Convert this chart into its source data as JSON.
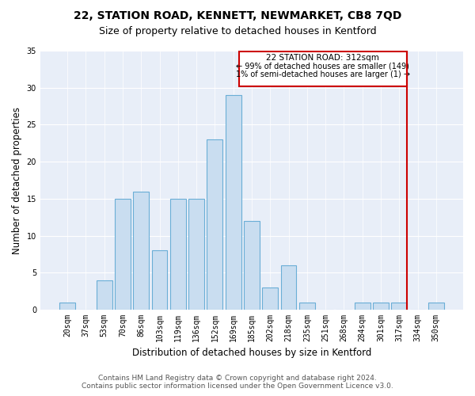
{
  "title1": "22, STATION ROAD, KENNETT, NEWMARKET, CB8 7QD",
  "title2": "Size of property relative to detached houses in Kentford",
  "xlabel": "Distribution of detached houses by size in Kentford",
  "ylabel": "Number of detached properties",
  "bar_labels": [
    "20sqm",
    "37sqm",
    "53sqm",
    "70sqm",
    "86sqm",
    "103sqm",
    "119sqm",
    "136sqm",
    "152sqm",
    "169sqm",
    "185sqm",
    "202sqm",
    "218sqm",
    "235sqm",
    "251sqm",
    "268sqm",
    "284sqm",
    "301sqm",
    "317sqm",
    "334sqm",
    "350sqm"
  ],
  "bar_values": [
    1,
    0,
    4,
    15,
    16,
    8,
    15,
    15,
    23,
    29,
    12,
    3,
    6,
    1,
    0,
    0,
    1,
    1,
    1,
    0,
    1
  ],
  "bar_color": "#c9ddf0",
  "bar_edge_color": "#6aaed6",
  "red_line_index": 18,
  "annotation_title": "22 STATION ROAD: 312sqm",
  "annotation_line1": "← 99% of detached houses are smaller (149)",
  "annotation_line2": "1% of semi-detached houses are larger (1) →",
  "red_color": "#cc0000",
  "ylim_max": 35,
  "yticks": [
    0,
    5,
    10,
    15,
    20,
    25,
    30,
    35
  ],
  "footer1": "Contains HM Land Registry data © Crown copyright and database right 2024.",
  "footer2": "Contains public sector information licensed under the Open Government Licence v3.0.",
  "bg_color": "#e8eef8",
  "title1_fontsize": 10,
  "title2_fontsize": 9,
  "xlabel_fontsize": 8.5,
  "ylabel_fontsize": 8.5,
  "tick_fontsize": 7,
  "annotation_fontsize": 7.5,
  "footer_fontsize": 6.5
}
